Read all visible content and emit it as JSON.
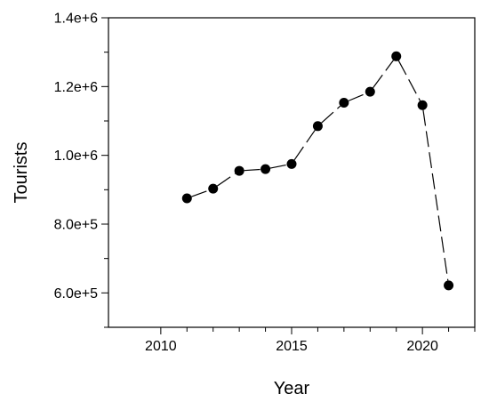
{
  "chart_data": {
    "type": "line",
    "title": "",
    "xlabel": "Year",
    "ylabel": "Tourists",
    "xlim": [
      2008,
      2022
    ],
    "ylim": [
      500000,
      1400000
    ],
    "x_ticks": [
      2010,
      2015,
      2020
    ],
    "x_tick_labels": [
      "2010",
      "2015",
      "2020"
    ],
    "y_ticks": [
      600000,
      800000,
      1000000,
      1200000,
      1400000
    ],
    "y_tick_labels": [
      "6.0e+5",
      "8.0e+5",
      "1.0e+6",
      "1.2e+6",
      "1.4e+6"
    ],
    "grid": false,
    "line_style": "dashed",
    "marker": "filled-circle",
    "colors": {
      "line": "#000000",
      "marker": "#000000",
      "axes": "#000000"
    },
    "series": [
      {
        "x": [
          2011,
          2012,
          2013,
          2014,
          2015,
          2016,
          2017,
          2018,
          2019,
          2020,
          2021
        ],
        "values": [
          875000,
          903000,
          955000,
          960000,
          975000,
          1085000,
          1153000,
          1185000,
          1288000,
          1146000,
          622000
        ]
      }
    ]
  }
}
